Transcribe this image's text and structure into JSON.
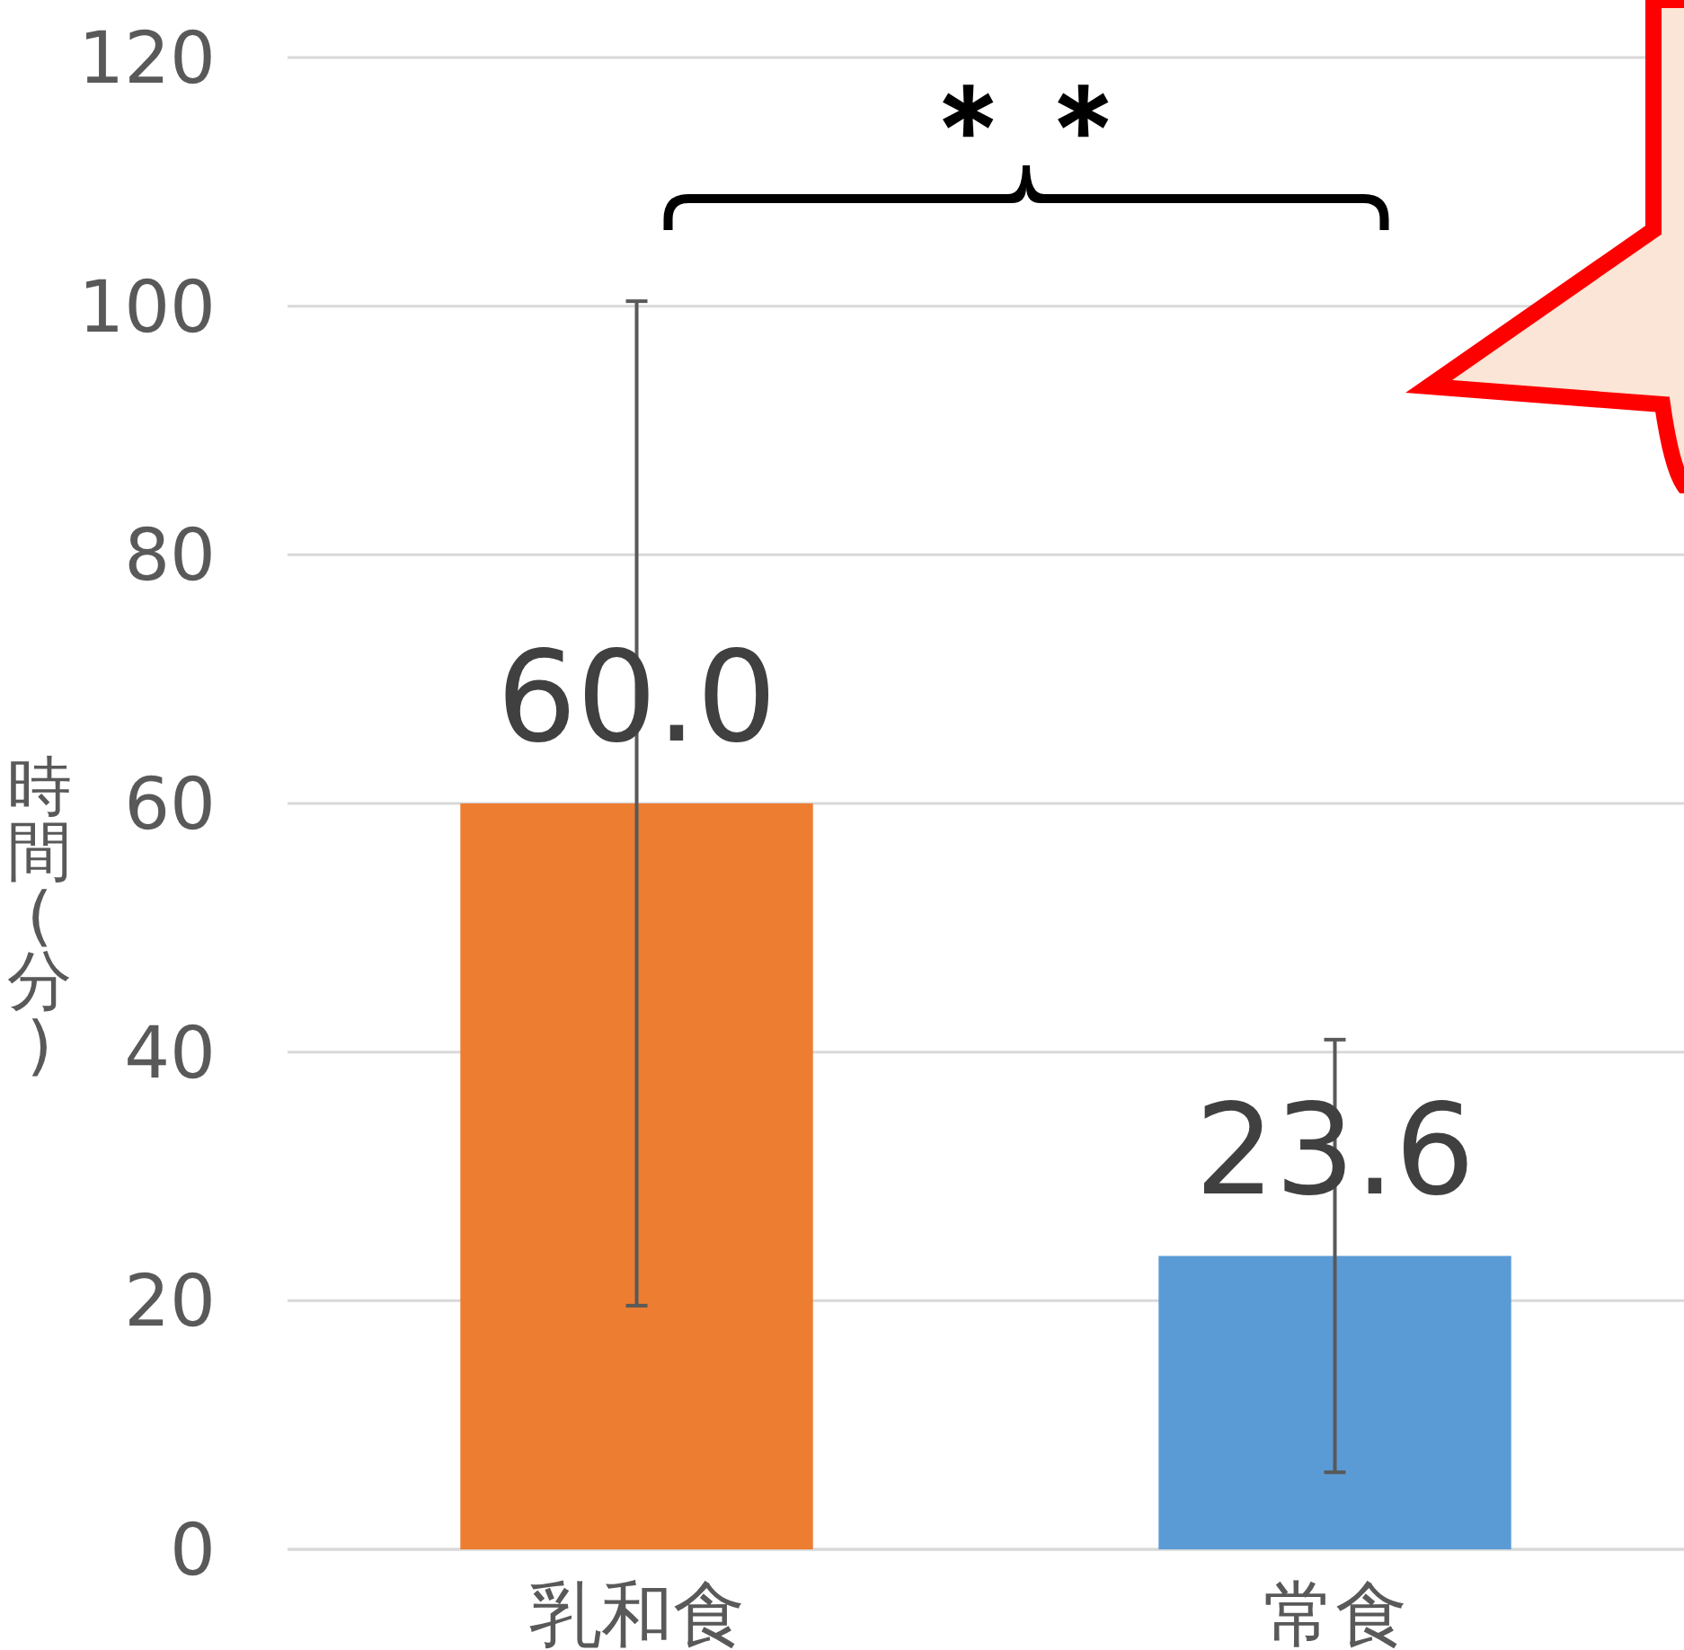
{
  "chart_data": {
    "type": "bar",
    "ylabel": "時間(分)",
    "categories": [
      "乳和食",
      "常食"
    ],
    "values": [
      60.0,
      23.6
    ],
    "colors": [
      "#ed7d31",
      "#5b9bd5"
    ],
    "errors": [
      40.4,
      17.4
    ],
    "ylim": [
      0,
      120
    ],
    "yticks": [
      0,
      20,
      40,
      60,
      80,
      100,
      120
    ],
    "grid": "y",
    "value_labels": [
      "60.0",
      "23.6"
    ],
    "annotations": [
      "＊＊"
    ]
  }
}
